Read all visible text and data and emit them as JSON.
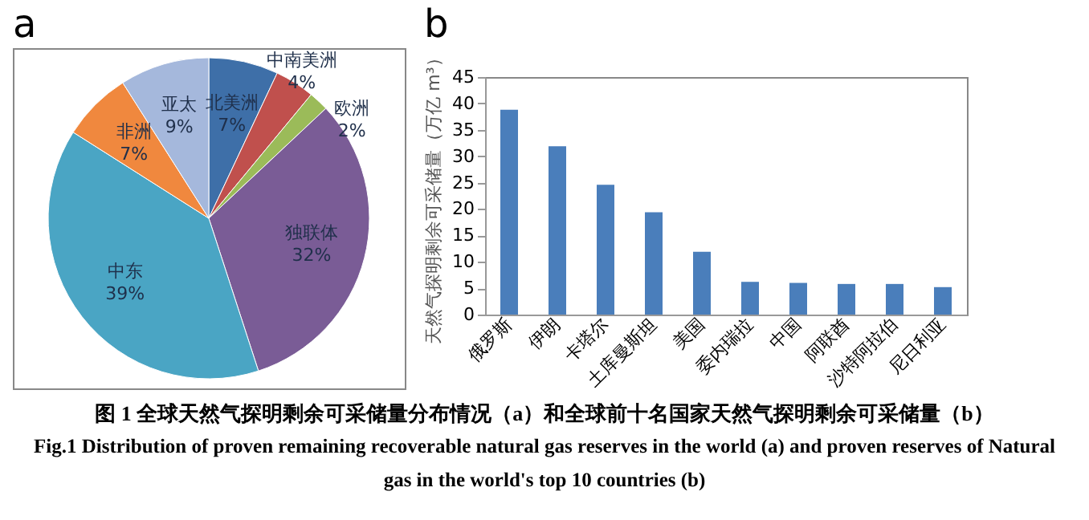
{
  "chart_data": [
    {
      "type": "pie",
      "title": "a",
      "categories": [
        "北美洲",
        "中南美洲",
        "欧洲",
        "独联体",
        "中东",
        "非洲",
        "亚太"
      ],
      "values": [
        7,
        4,
        2,
        32,
        39,
        7,
        9
      ],
      "value_labels": [
        "7%",
        "4%",
        "2%",
        "32%",
        "39%",
        "7%",
        "9%"
      ],
      "colors": [
        "#3e6fa8",
        "#c0504d",
        "#9bbb59",
        "#7a5c96",
        "#4aa5c4",
        "#f0883e",
        "#a5b8dc"
      ]
    },
    {
      "type": "bar",
      "title": "b",
      "categories": [
        "俄罗斯",
        "伊朗",
        "卡塔尔",
        "土库曼斯坦",
        "美国",
        "委内瑞拉",
        "中国",
        "阿联酋",
        "沙特阿拉伯",
        "尼日利亚"
      ],
      "values": [
        38.8,
        31.9,
        24.6,
        19.4,
        11.9,
        6.2,
        6.0,
        5.8,
        5.8,
        5.2
      ],
      "color": "#4a7ebb",
      "ylabel": "天然气探明剩余可采储量（万亿 m³）",
      "ylim": [
        0,
        45
      ],
      "yticks": [
        0,
        5,
        10,
        15,
        20,
        25,
        30,
        35,
        40,
        45
      ],
      "annotations": [
        "图 1 全球天然气探明剩余可采储量分布情况（a）和全球前十名国家天然气探明剩余可采储量（b）",
        "Fig.1 Distribution of proven remaining recoverable natural gas reserves in the world (a) and proven reserves of Natural gas in the world's top 10 countries (b)"
      ]
    }
  ]
}
